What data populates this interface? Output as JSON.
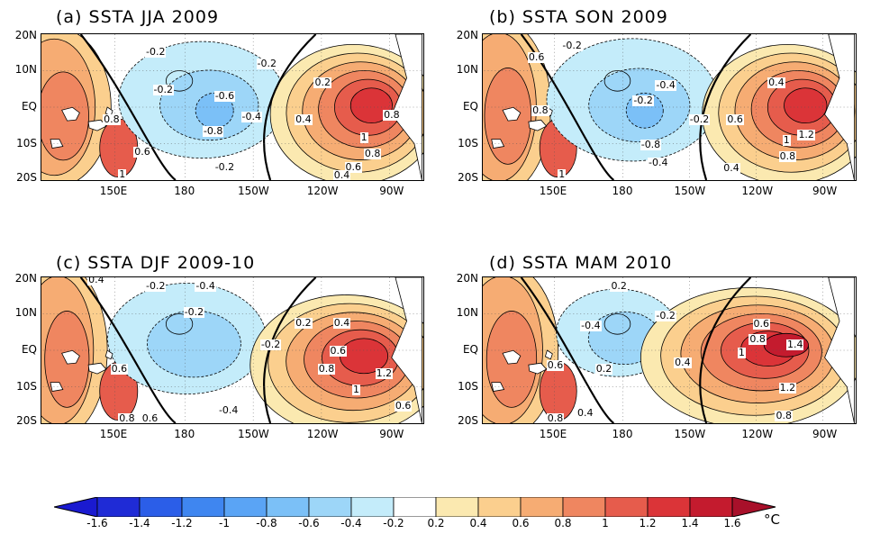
{
  "panels": [
    {
      "title": "(a) SSTA JJA 2009",
      "contour_labels": [
        "-0.2",
        "-0.2",
        "-0.6",
        "-0.4",
        "-0.8",
        "-0.2",
        "0.2",
        "0.4",
        "0.8",
        "1",
        "0.8",
        "0.6",
        "0.4",
        "0.8",
        "0.6",
        "1",
        "-0.2"
      ]
    },
    {
      "title": "(b) SSTA SON 2009",
      "contour_labels": [
        "0.6",
        "-0.2",
        "-0.4",
        "-0.2",
        "0.8",
        "-0.8",
        "-0.4",
        "-0.2",
        "0.4",
        "0.6",
        "1.2",
        "1",
        "0.8",
        "0.4",
        "1"
      ]
    },
    {
      "title": "(c) SSTA DJF 2009-10",
      "contour_labels": [
        "0.4",
        "-0.2",
        "-0.4",
        "-0.2",
        "-0.2",
        "0.2",
        "0.4",
        "0.6",
        "0.8",
        "1.2",
        "1",
        "0.6",
        "-0.4",
        "0.6",
        "0.8",
        "0.6"
      ]
    },
    {
      "title": "(d) SSTA MAM 2010",
      "contour_labels": [
        "0.2",
        "-0.2",
        "-0.4",
        "0.6",
        "0.8",
        "1",
        "1.4",
        "0.4",
        "0.2",
        "1.2",
        "0.6",
        "0.4",
        "0.8",
        "0.8"
      ]
    }
  ],
  "lat_labels": [
    "20N",
    "10N",
    "EQ",
    "10S",
    "20S"
  ],
  "lon_labels": [
    "150E",
    "180",
    "150W",
    "120W",
    "90W"
  ],
  "colorbar": {
    "ticks": [
      "-1.6",
      "-1.4",
      "-1.2",
      "-1",
      "-0.8",
      "-0.6",
      "-0.4",
      "-0.2",
      "0.2",
      "0.4",
      "0.6",
      "0.8",
      "1",
      "1.2",
      "1.4",
      "1.6"
    ],
    "unit": "°C",
    "colors": [
      "#1f2bd6",
      "#2b5ee8",
      "#3f86f0",
      "#5aa4f5",
      "#7bc0f7",
      "#9dd6f8",
      "#c4ecfa",
      "#ffffff",
      "#fbe9b0",
      "#fbcf8e",
      "#f6ac73",
      "#ef8660",
      "#e65c4c",
      "#db3438",
      "#c41b2e"
    ],
    "left_arrow_color": "#1a1ad0",
    "right_arrow_color": "#a8102a"
  },
  "colors": {
    "warm1": "#fbe9b0",
    "warm2": "#fbcf8e",
    "warm3": "#f6ac73",
    "warm4": "#ef8660",
    "warm5": "#e65c4c",
    "warm6": "#db3438",
    "warm7": "#c41b2e",
    "cool1": "#c4ecfa",
    "cool2": "#9dd6f8",
    "cool3": "#7bc0f7"
  }
}
